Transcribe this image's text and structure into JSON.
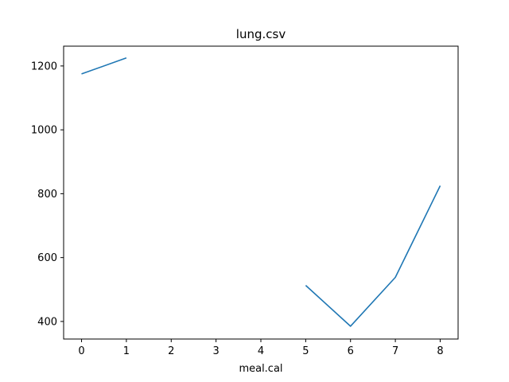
{
  "chart_data": {
    "type": "line",
    "title": "lung.csv",
    "xlabel": "meal.cal",
    "ylabel": "",
    "xlim": [
      -0.4,
      8.4
    ],
    "ylim": [
      345,
      1262
    ],
    "x_ticks": [
      0,
      1,
      2,
      3,
      4,
      5,
      6,
      7,
      8
    ],
    "y_ticks": [
      400,
      600,
      800,
      1000,
      1200
    ],
    "grid": false,
    "color": "#1f77b4",
    "series": [
      {
        "segments": [
          [
            [
              0,
              1175
            ],
            [
              1,
              1225
            ]
          ],
          [
            [
              5,
              513
            ],
            [
              6,
              385
            ],
            [
              7,
              538
            ],
            [
              8,
              825
            ]
          ]
        ]
      }
    ]
  }
}
